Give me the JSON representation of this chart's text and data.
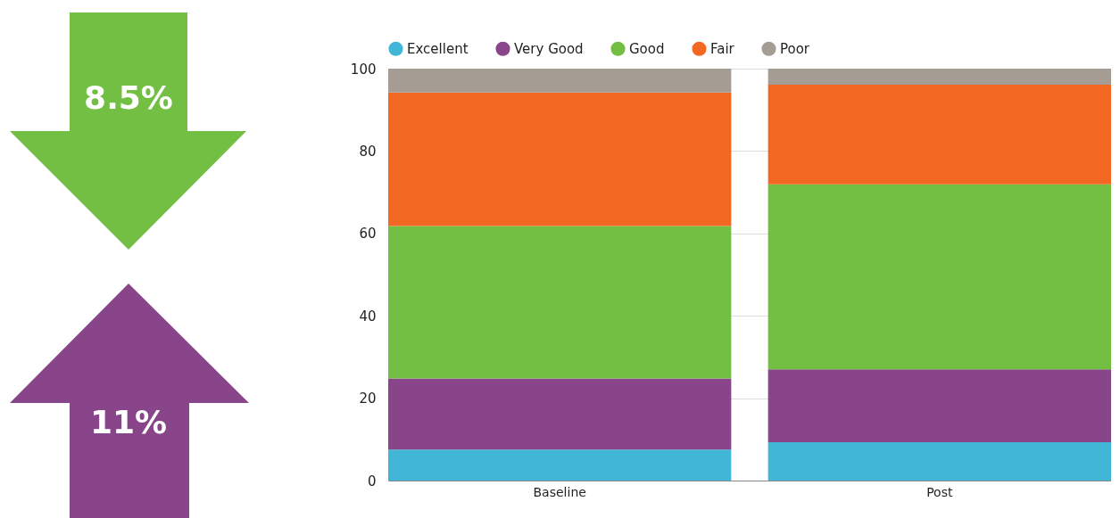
{
  "chart_data": {
    "type": "bar",
    "stacked": true,
    "categories": [
      "Baseline",
      "Post"
    ],
    "series": [
      {
        "name": "Excellent",
        "color": "#41b6d6",
        "values": [
          7.5,
          9.3
        ]
      },
      {
        "name": "Very Good",
        "color": "#884589",
        "values": [
          17.3,
          17.7
        ]
      },
      {
        "name": "Good",
        "color": "#72bf44",
        "values": [
          37.0,
          44.9
        ]
      },
      {
        "name": "Fair",
        "color": "#f26722",
        "values": [
          32.4,
          24.2
        ]
      },
      {
        "name": "Poor",
        "color": "#a59d94",
        "values": [
          5.8,
          3.9
        ]
      }
    ],
    "ylim": [
      0,
      100
    ],
    "yticks": [
      0,
      20,
      40,
      60,
      80,
      100
    ],
    "grid": "y",
    "legend": "top",
    "annotations": [
      "8.5%",
      "11%"
    ]
  }
}
